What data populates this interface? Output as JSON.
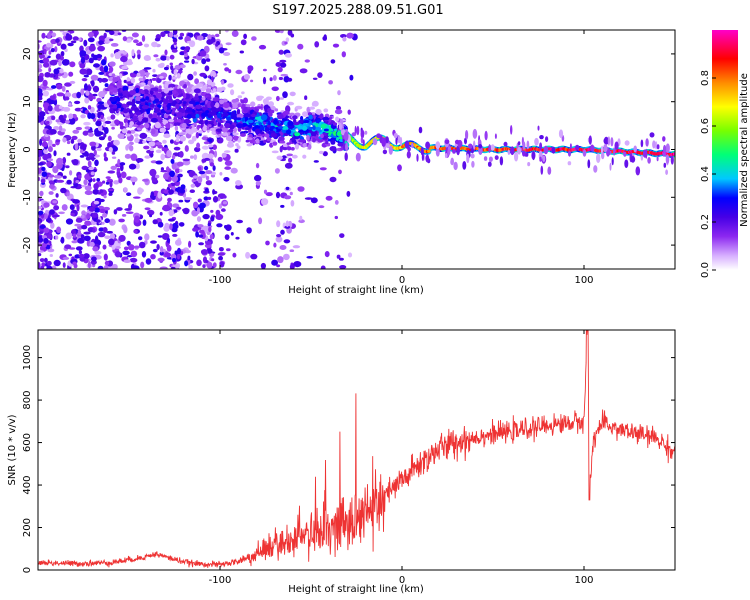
{
  "title": "S197.2025.288.09.51.G01",
  "chart_data": [
    {
      "type": "heatmap",
      "title": "S197.2025.288.09.51.G01",
      "xlabel": "Height of straight line (km)",
      "ylabel": "Frequency (Hz)",
      "xlim": [
        -200,
        150
      ],
      "ylim": [
        -25,
        25
      ],
      "xticks": [
        -100,
        0,
        100
      ],
      "yticks": [
        -20,
        -10,
        0,
        10,
        20
      ],
      "colorbar": {
        "label": "Normalized spectral amplitude",
        "range": [
          0,
          1
        ],
        "ticks": [
          0.0,
          0.2,
          0.4,
          0.6,
          0.8
        ],
        "tick_labels": [
          "0.0",
          "0.2",
          "0.4",
          "0.6",
          "0.8"
        ],
        "colors": [
          "#ffffff",
          "#cc99ff",
          "#7700ee",
          "#0000ff",
          "#00ffff",
          "#00ff00",
          "#ffff00",
          "#ff8800",
          "#ff0000",
          "#ff00cc"
        ]
      },
      "ridge": [
        {
          "x": -150,
          "f": 10,
          "amp": 0.25
        },
        {
          "x": -130,
          "f": 9,
          "amp": 0.25
        },
        {
          "x": -110,
          "f": 8,
          "amp": 0.25
        },
        {
          "x": -90,
          "f": 6,
          "amp": 0.3
        },
        {
          "x": -70,
          "f": 5,
          "amp": 0.35
        },
        {
          "x": -60,
          "f": 4,
          "amp": 0.4
        },
        {
          "x": -45,
          "f": 5,
          "amp": 0.4
        },
        {
          "x": -35,
          "f": 3,
          "amp": 0.5
        },
        {
          "x": -20,
          "f": 1,
          "amp": 0.7
        },
        {
          "x": -10,
          "f": 2,
          "amp": 0.75
        },
        {
          "x": 0,
          "f": 0.5,
          "amp": 0.8
        },
        {
          "x": 50,
          "f": 0,
          "amp": 0.9
        },
        {
          "x": 100,
          "f": 0,
          "amp": 0.95
        },
        {
          "x": 150,
          "f": -1,
          "amp": 1.0
        }
      ]
    },
    {
      "type": "line",
      "xlabel": "Height of straight line (km)",
      "ylabel": "SNR (10 * v/v)",
      "xlim": [
        -200,
        150
      ],
      "ylim": [
        0,
        1130
      ],
      "xticks": [
        -100,
        0,
        100
      ],
      "yticks": [
        0,
        200,
        400,
        600,
        800,
        1000
      ],
      "color": "#ee3333",
      "series": [
        {
          "name": "SNR",
          "x": [
            -200,
            -180,
            -160,
            -145,
            -135,
            -125,
            -115,
            -100,
            -90,
            -80,
            -70,
            -60,
            -50,
            -40,
            -30,
            -20,
            -10,
            0,
            10,
            20,
            30,
            40,
            50,
            60,
            70,
            80,
            90,
            95,
            100,
            102,
            103,
            105,
            110,
            120,
            130,
            140,
            150
          ],
          "values": [
            35,
            30,
            35,
            55,
            75,
            50,
            30,
            25,
            40,
            70,
            110,
            140,
            170,
            200,
            220,
            260,
            340,
            420,
            500,
            570,
            600,
            625,
            640,
            650,
            665,
            680,
            690,
            695,
            700,
            1130,
            330,
            620,
            690,
            660,
            640,
            620,
            550
          ]
        }
      ]
    }
  ]
}
